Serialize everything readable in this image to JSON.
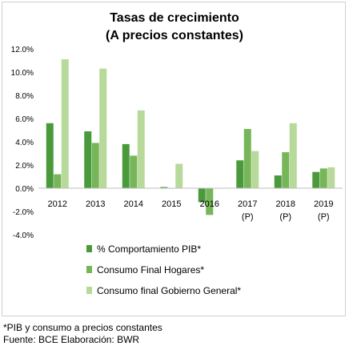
{
  "chart_data": {
    "type": "bar",
    "title": "Tasas de crecimiento",
    "subtitle": "(A precios constantes)",
    "categories": [
      "2012",
      "2013",
      "2014",
      "2015",
      "2016",
      "2017",
      "2018",
      "2019"
    ],
    "category_sublabels": [
      "",
      "",
      "",
      "",
      "",
      "(P)",
      "(P)",
      "(P)"
    ],
    "series": [
      {
        "name": "% Comportamiento PIB*",
        "color": "#4a9a3c",
        "values": [
          5.6,
          4.9,
          3.8,
          0.1,
          -1.2,
          2.4,
          1.1,
          1.4
        ]
      },
      {
        "name": "Consumo Final Hogares*",
        "color": "#76b558",
        "values": [
          1.2,
          3.9,
          2.8,
          0.0,
          -2.3,
          5.1,
          3.1,
          1.7
        ]
      },
      {
        "name": "Consumo final Gobierno General*",
        "color": "#b7d99a",
        "values": [
          11.1,
          10.3,
          6.7,
          2.1,
          0.0,
          3.2,
          5.6,
          1.8
        ]
      }
    ],
    "ylim": [
      -4,
      12
    ],
    "yticks": [
      "12.0%",
      "10.0%",
      "8.0%",
      "6.0%",
      "4.0%",
      "2.0%",
      "0.0%",
      "-2.0%",
      "-4.0%"
    ],
    "xlabel": "",
    "ylabel": "",
    "grid": false,
    "legend_position": "bottom"
  },
  "footnotes": {
    "note": "*PIB y consumo a precios constantes",
    "source": "Fuente: BCE Elaboración: BWR"
  }
}
